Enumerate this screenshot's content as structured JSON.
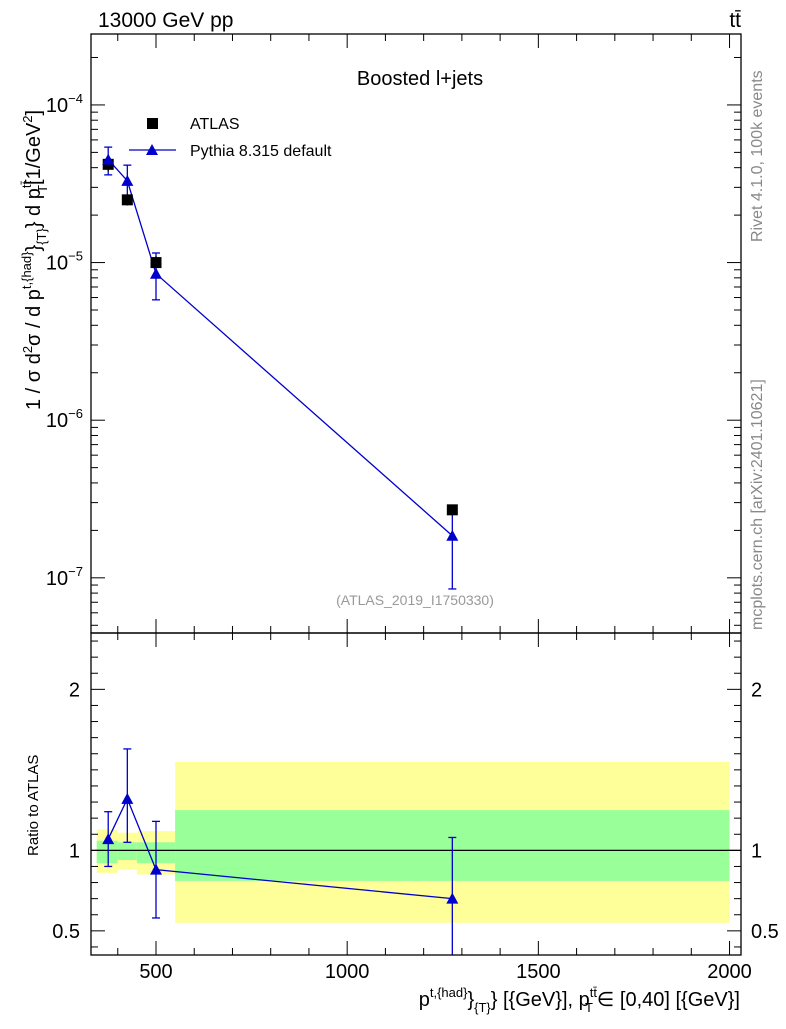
{
  "header": {
    "left": "13000 GeV pp",
    "right": "tt̄"
  },
  "side_text": {
    "rivet": "Rivet 4.1.0,  100k events",
    "source": "mcplots.cern.ch [arXiv:2401.10621]"
  },
  "colors": {
    "mc": "#0000cc",
    "data": "#000000",
    "band_inner": "#99ff99",
    "band_outer": "#ffff99"
  },
  "chart_data": [
    {
      "type": "scatter",
      "scale": "log",
      "title": "Boosted l+jets",
      "analysis_label": "(ATLAS_2019_I1750330)",
      "ylabel_parts": [
        "1 / σ d",
        "2",
        "σ / d p",
        "t,{had}",
        "}",
        "{T}",
        "} d p",
        "tt̄",
        "T",
        "[1/GeV",
        "2",
        "]"
      ],
      "xlim": [
        330,
        2030
      ],
      "ylim_log10": [
        -7.35,
        -3.55
      ],
      "yticks": [
        {
          "exp": -7,
          "label": "10",
          "sup": "−7"
        },
        {
          "exp": -6,
          "label": "10",
          "sup": "−6"
        },
        {
          "exp": -5,
          "label": "10",
          "sup": "−5"
        },
        {
          "exp": -4,
          "label": "10",
          "sup": "−4"
        }
      ],
      "legend": [
        {
          "label": "ATLAS",
          "marker": "square"
        },
        {
          "label": "Pythia 8.315 default",
          "marker": "triangle"
        }
      ],
      "series": [
        {
          "name": "ATLAS",
          "x": [
            375,
            425,
            500,
            1275
          ],
          "y": [
            4.2e-05,
            2.5e-05,
            1e-05,
            2.7e-07
          ],
          "err_lo": [
            4e-06,
            2e-06,
            1e-06,
            2e-08
          ],
          "err_hi": [
            4e-06,
            2e-06,
            1e-06,
            2e-08
          ]
        },
        {
          "name": "Pythia 8.315 default",
          "x": [
            375,
            425,
            500,
            1275
          ],
          "y": [
            4.5e-05,
            3.3e-05,
            8.5e-06,
            1.85e-07
          ],
          "err_lo": [
            9e-06,
            9e-06,
            2.7e-06,
            1e-07
          ],
          "err_hi": [
            9e-06,
            8.5e-06,
            3e-06,
            1e-07
          ]
        }
      ]
    },
    {
      "type": "scatter",
      "ylabel": "Ratio to ATLAS",
      "xlabel_parts": [
        "p",
        "t,{had}",
        "}",
        "{T}",
        "} [{GeV}], p",
        "tt̄",
        "T",
        "∈ [0,40] [{GeV}]"
      ],
      "xlim": [
        330,
        2030
      ],
      "ylim": [
        0.35,
        2.35
      ],
      "xticks": [
        500,
        1000,
        1500,
        2000
      ],
      "yticks": [
        0.5,
        1,
        2
      ],
      "reference": 1,
      "bands": [
        {
          "x0": 345,
          "x1": 400,
          "outer": [
            0.86,
            1.13
          ],
          "inner": [
            0.92,
            1.06
          ]
        },
        {
          "x0": 400,
          "x1": 450,
          "outer": [
            0.88,
            1.11
          ],
          "inner": [
            0.94,
            1.05
          ]
        },
        {
          "x0": 450,
          "x1": 550,
          "outer": [
            0.85,
            1.12
          ],
          "inner": [
            0.92,
            1.05
          ]
        },
        {
          "x0": 550,
          "x1": 2000,
          "outer": [
            0.55,
            1.55
          ],
          "inner": [
            0.81,
            1.25
          ]
        }
      ],
      "series": [
        {
          "name": "Pythia 8.315 default",
          "x": [
            375,
            425,
            500,
            1275
          ],
          "y": [
            1.07,
            1.32,
            0.88,
            0.7
          ],
          "err_lo": [
            0.17,
            0.27,
            0.3,
            0.4
          ],
          "err_hi": [
            0.17,
            0.31,
            0.3,
            0.38
          ]
        }
      ]
    }
  ]
}
